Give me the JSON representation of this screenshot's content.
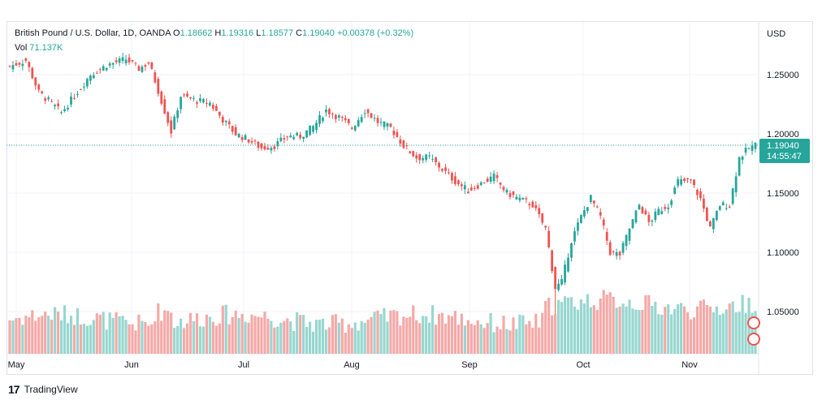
{
  "legend": {
    "symbol": "British Pound / U.S. Dollar, 1D, OANDA",
    "o_label": "O",
    "o": "1.18662",
    "h_label": "H",
    "h": "1.19316",
    "l_label": "L",
    "l": "1.18577",
    "c_label": "C",
    "c": "1.19040",
    "change": "+0.00378 (+0.32%)",
    "vol_label": "Vol",
    "vol": "71.137K"
  },
  "footer": {
    "brand": "TradingView",
    "logo_text": "17"
  },
  "price_tag": {
    "price": "1.19040",
    "countdown": "14:55:47"
  },
  "colors": {
    "up": "#26a69a",
    "down": "#ef5350",
    "vol_up": "#97d7d0",
    "vol_down": "#f4a9a7",
    "grid": "#f0f3fa",
    "axis_text": "#131722"
  },
  "chart_data": {
    "type": "candlestick",
    "y_axis_label": "USD",
    "y_ticks": [
      "1.25000",
      "1.20000",
      "1.15000",
      "1.10000",
      "1.05000"
    ],
    "x_ticks": [
      "May",
      "Jun",
      "Jul",
      "Aug",
      "Sep",
      "Oct",
      "Nov"
    ],
    "ylim": [
      1.02,
      1.28
    ],
    "last_price": 1.1904,
    "key_levels": [
      {
        "label": "early May",
        "close": 1.255
      },
      {
        "label": "mid May low",
        "close": 1.22
      },
      {
        "label": "end May high",
        "close": 1.263
      },
      {
        "label": "mid Jun low",
        "close": 1.198
      },
      {
        "label": "early Jul low",
        "close": 1.185
      },
      {
        "label": "early Aug high",
        "close": 1.222
      },
      {
        "label": "end Sep low",
        "low": 1.035,
        "close": 1.07
      },
      {
        "label": "early Oct high",
        "close": 1.145
      },
      {
        "label": "mid Oct low",
        "close": 1.095
      },
      {
        "label": "early Nov high",
        "close": 1.16
      },
      {
        "label": "mid Nov low",
        "close": 1.12
      },
      {
        "label": "last",
        "open": 1.18662,
        "high": 1.19316,
        "low": 1.18577,
        "close": 1.1904
      }
    ],
    "volume_last": "71.137K"
  }
}
